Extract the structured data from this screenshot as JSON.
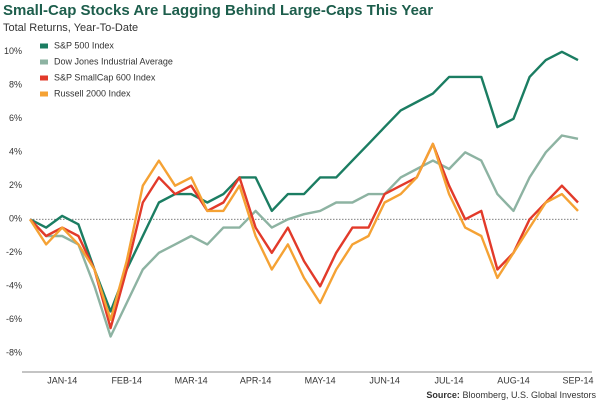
{
  "chart_data": {
    "type": "line",
    "title": "Small-Cap Stocks Are Lagging Behind Large-Caps This Year",
    "subtitle": "Total Returns, Year-To-Date",
    "source_label": "Source:",
    "source": "Bloomberg, U.S. Global Investors",
    "categories": [
      null,
      null,
      "JAN-14",
      null,
      null,
      null,
      "FEB-14",
      null,
      null,
      null,
      "MAR-14",
      null,
      null,
      null,
      "APR-14",
      null,
      null,
      null,
      "MAY-14",
      null,
      null,
      null,
      "JUN-14",
      null,
      null,
      null,
      "JUL-14",
      null,
      null,
      null,
      "AUG-14",
      null,
      null,
      null,
      "SEP-14"
    ],
    "series": [
      {
        "name": "S&P 500 Index",
        "color": "#1b7d62",
        "values": [
          0,
          -0.5,
          0.2,
          -0.3,
          -3,
          -5.5,
          -3,
          -1,
          1,
          1.5,
          1.5,
          1,
          1.5,
          2.5,
          2.5,
          0.5,
          1.5,
          1.5,
          2.5,
          2.5,
          3.5,
          4.5,
          5.5,
          6.5,
          7,
          7.5,
          8.5,
          8.5,
          8.5,
          5.5,
          6,
          8.5,
          9.5,
          10,
          9.5
        ]
      },
      {
        "name": "Dow Jones Industrial Average",
        "color": "#8db3a2",
        "values": [
          0,
          -1,
          -1,
          -1.5,
          -4,
          -7,
          -5,
          -3,
          -2,
          -1.5,
          -1,
          -1.5,
          -0.5,
          -0.5,
          0.5,
          -0.5,
          0,
          0.3,
          0.5,
          1,
          1,
          1.5,
          1.5,
          2.5,
          3,
          3.5,
          3,
          4,
          3.5,
          1.5,
          0.5,
          2.5,
          4,
          5,
          4.8
        ]
      },
      {
        "name": "S&P SmallCap 600 Index",
        "color": "#e23a2a",
        "values": [
          0,
          -1,
          -0.5,
          -1,
          -3,
          -6.5,
          -3,
          1,
          2.5,
          1.5,
          2,
          0.5,
          1,
          2.5,
          -0.5,
          -2,
          -0.5,
          -2.5,
          -4,
          -2,
          -0.5,
          -0.5,
          1.5,
          2,
          2.5,
          4.5,
          2,
          0,
          0.5,
          -3,
          -2,
          0,
          1,
          2,
          1
        ]
      },
      {
        "name": "Russell 2000 Index",
        "color": "#f5a234",
        "values": [
          0,
          -1.5,
          -0.5,
          -1.5,
          -3,
          -6,
          -2.5,
          2,
          3.5,
          2,
          2.5,
          0.5,
          0.5,
          2,
          -1,
          -3,
          -1.5,
          -3.5,
          -5,
          -3,
          -1.5,
          -1,
          1,
          1.5,
          2.5,
          4.5,
          1.5,
          -0.5,
          -1,
          -3.5,
          -2,
          -0.5,
          1,
          1.5,
          0.5
        ]
      }
    ],
    "ylim": [
      -9,
      11
    ],
    "yticks": [
      {
        "value": -8,
        "label": "-8%"
      },
      {
        "value": -6,
        "label": "-6%"
      },
      {
        "value": -4,
        "label": "-4%"
      },
      {
        "value": -2,
        "label": "-2%"
      },
      {
        "value": 0,
        "label": "0%"
      },
      {
        "value": 2,
        "label": "2%"
      },
      {
        "value": 4,
        "label": "4%"
      },
      {
        "value": 6,
        "label": "6%"
      },
      {
        "value": 8,
        "label": "8%"
      },
      {
        "value": 10,
        "label": "10%"
      }
    ],
    "hline": 0,
    "legend": "upper left"
  }
}
